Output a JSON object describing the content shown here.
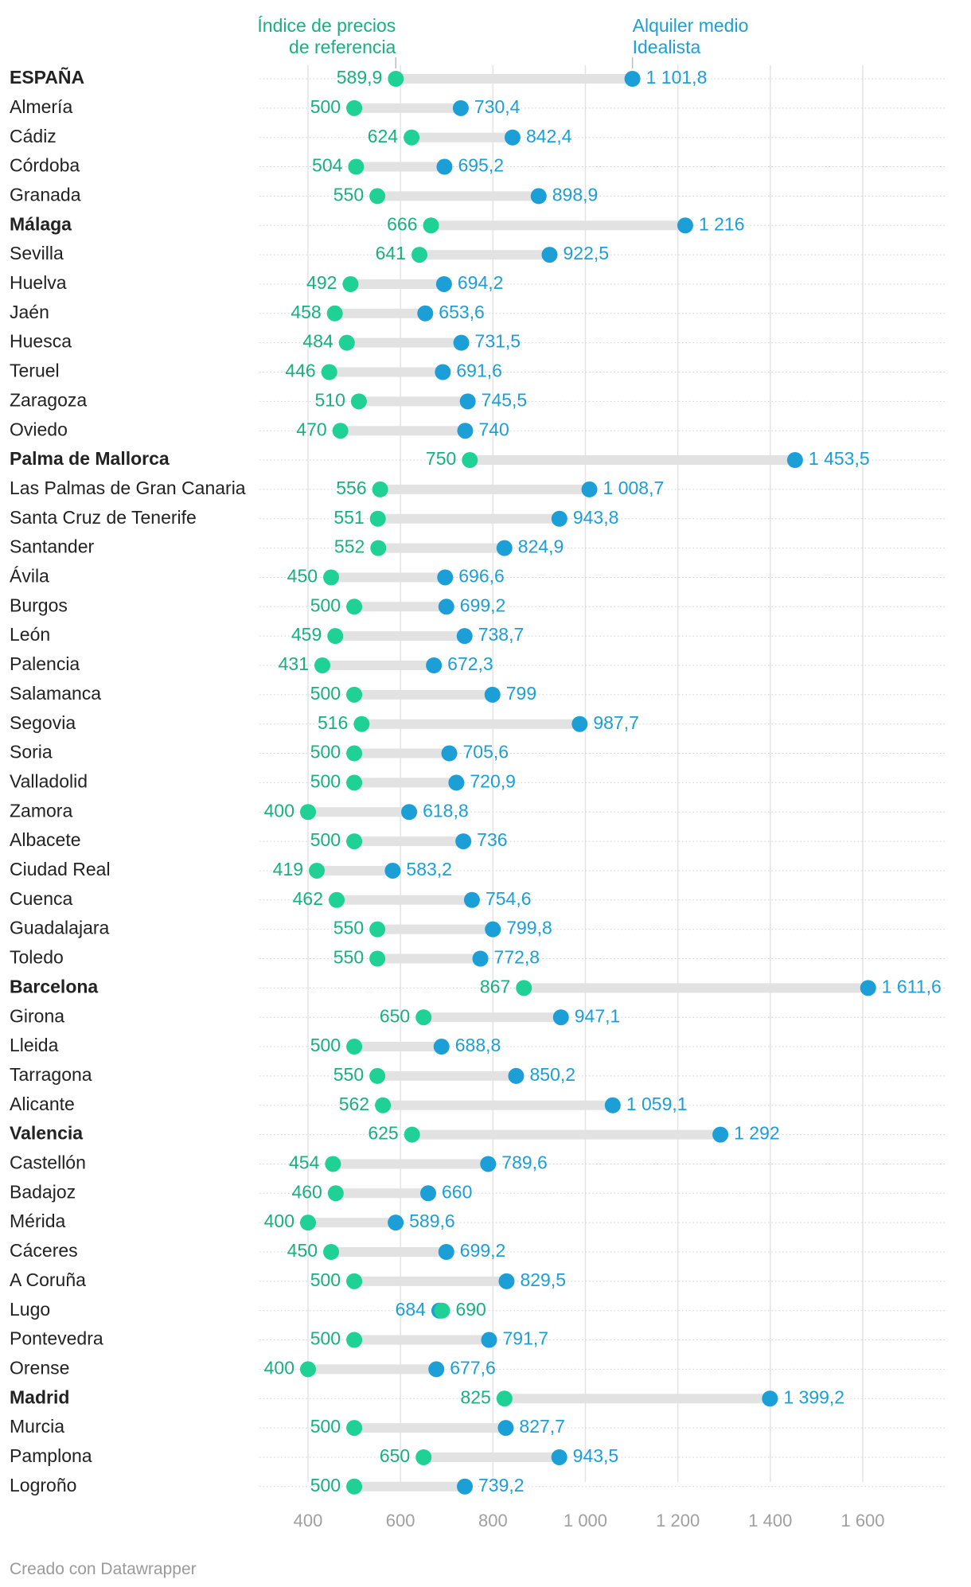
{
  "chart_data": {
    "type": "dot-range",
    "title": "",
    "xlabel": "",
    "ylabel": "",
    "xlim": [
      340,
      1700
    ],
    "xticks": [
      400,
      600,
      800,
      1000,
      1200,
      1400,
      1600
    ],
    "xtick_labels": [
      "400",
      "600",
      "800",
      "1 000",
      "1 200",
      "1 400",
      "1 600"
    ],
    "series": [
      {
        "name": "Índice de precios de referencia",
        "label_lines": [
          "Índice de precios",
          "de referencia"
        ],
        "color": "#1fd195",
        "text_color": "#17b07e"
      },
      {
        "name": "Alquiler medio Idealista",
        "label_lines": [
          "Alquiler medio",
          "Idealista"
        ],
        "color": "#1b9fd6",
        "text_color": "#1b9fd6"
      }
    ],
    "rows": [
      {
        "label": "ESPAÑA",
        "bold": true,
        "ref": 589.9,
        "ref_label": "589,9",
        "idealista": 1101.8,
        "idealista_label": "1 101,8"
      },
      {
        "label": "Almería",
        "bold": false,
        "ref": 500,
        "ref_label": "500",
        "idealista": 730.4,
        "idealista_label": "730,4"
      },
      {
        "label": "Cádiz",
        "bold": false,
        "ref": 624,
        "ref_label": "624",
        "idealista": 842.4,
        "idealista_label": "842,4"
      },
      {
        "label": "Córdoba",
        "bold": false,
        "ref": 504,
        "ref_label": "504",
        "idealista": 695.2,
        "idealista_label": "695,2"
      },
      {
        "label": "Granada",
        "bold": false,
        "ref": 550,
        "ref_label": "550",
        "idealista": 898.9,
        "idealista_label": "898,9"
      },
      {
        "label": "Málaga",
        "bold": true,
        "ref": 666,
        "ref_label": "666",
        "idealista": 1216,
        "idealista_label": "1 216"
      },
      {
        "label": "Sevilla",
        "bold": false,
        "ref": 641,
        "ref_label": "641",
        "idealista": 922.5,
        "idealista_label": "922,5"
      },
      {
        "label": "Huelva",
        "bold": false,
        "ref": 492,
        "ref_label": "492",
        "idealista": 694.2,
        "idealista_label": "694,2"
      },
      {
        "label": "Jaén",
        "bold": false,
        "ref": 458,
        "ref_label": "458",
        "idealista": 653.6,
        "idealista_label": "653,6"
      },
      {
        "label": "Huesca",
        "bold": false,
        "ref": 484,
        "ref_label": "484",
        "idealista": 731.5,
        "idealista_label": "731,5"
      },
      {
        "label": "Teruel",
        "bold": false,
        "ref": 446,
        "ref_label": "446",
        "idealista": 691.6,
        "idealista_label": "691,6"
      },
      {
        "label": "Zaragoza",
        "bold": false,
        "ref": 510,
        "ref_label": "510",
        "idealista": 745.5,
        "idealista_label": "745,5"
      },
      {
        "label": "Oviedo",
        "bold": false,
        "ref": 470,
        "ref_label": "470",
        "idealista": 740,
        "idealista_label": "740"
      },
      {
        "label": "Palma de Mallorca",
        "bold": true,
        "ref": 750,
        "ref_label": "750",
        "idealista": 1453.5,
        "idealista_label": "1 453,5"
      },
      {
        "label": "Las Palmas de Gran Canaria",
        "bold": false,
        "ref": 556,
        "ref_label": "556",
        "idealista": 1008.7,
        "idealista_label": "1 008,7"
      },
      {
        "label": "Santa Cruz de Tenerife",
        "bold": false,
        "ref": 551,
        "ref_label": "551",
        "idealista": 943.8,
        "idealista_label": "943,8"
      },
      {
        "label": "Santander",
        "bold": false,
        "ref": 552,
        "ref_label": "552",
        "idealista": 824.9,
        "idealista_label": "824,9"
      },
      {
        "label": "Ávila",
        "bold": false,
        "ref": 450,
        "ref_label": "450",
        "idealista": 696.6,
        "idealista_label": "696,6"
      },
      {
        "label": "Burgos",
        "bold": false,
        "ref": 500,
        "ref_label": "500",
        "idealista": 699.2,
        "idealista_label": "699,2"
      },
      {
        "label": "León",
        "bold": false,
        "ref": 459,
        "ref_label": "459",
        "idealista": 738.7,
        "idealista_label": "738,7"
      },
      {
        "label": "Palencia",
        "bold": false,
        "ref": 431,
        "ref_label": "431",
        "idealista": 672.3,
        "idealista_label": "672,3"
      },
      {
        "label": "Salamanca",
        "bold": false,
        "ref": 500,
        "ref_label": "500",
        "idealista": 799,
        "idealista_label": "799"
      },
      {
        "label": "Segovia",
        "bold": false,
        "ref": 516,
        "ref_label": "516",
        "idealista": 987.7,
        "idealista_label": "987,7"
      },
      {
        "label": "Soria",
        "bold": false,
        "ref": 500,
        "ref_label": "500",
        "idealista": 705.6,
        "idealista_label": "705,6"
      },
      {
        "label": "Valladolid",
        "bold": false,
        "ref": 500,
        "ref_label": "500",
        "idealista": 720.9,
        "idealista_label": "720,9"
      },
      {
        "label": "Zamora",
        "bold": false,
        "ref": 400,
        "ref_label": "400",
        "idealista": 618.8,
        "idealista_label": "618,8"
      },
      {
        "label": "Albacete",
        "bold": false,
        "ref": 500,
        "ref_label": "500",
        "idealista": 736,
        "idealista_label": "736"
      },
      {
        "label": "Ciudad Real",
        "bold": false,
        "ref": 419,
        "ref_label": "419",
        "idealista": 583.2,
        "idealista_label": "583,2"
      },
      {
        "label": "Cuenca",
        "bold": false,
        "ref": 462,
        "ref_label": "462",
        "idealista": 754.6,
        "idealista_label": "754,6"
      },
      {
        "label": "Guadalajara",
        "bold": false,
        "ref": 550,
        "ref_label": "550",
        "idealista": 799.8,
        "idealista_label": "799,8"
      },
      {
        "label": "Toledo",
        "bold": false,
        "ref": 550,
        "ref_label": "550",
        "idealista": 772.8,
        "idealista_label": "772,8"
      },
      {
        "label": "Barcelona",
        "bold": true,
        "ref": 867,
        "ref_label": "867",
        "idealista": 1611.6,
        "idealista_label": "1 611,6"
      },
      {
        "label": "Girona",
        "bold": false,
        "ref": 650,
        "ref_label": "650",
        "idealista": 947.1,
        "idealista_label": "947,1"
      },
      {
        "label": "Lleida",
        "bold": false,
        "ref": 500,
        "ref_label": "500",
        "idealista": 688.8,
        "idealista_label": "688,8"
      },
      {
        "label": "Tarragona",
        "bold": false,
        "ref": 550,
        "ref_label": "550",
        "idealista": 850.2,
        "idealista_label": "850,2"
      },
      {
        "label": "Alicante",
        "bold": false,
        "ref": 562,
        "ref_label": "562",
        "idealista": 1059.1,
        "idealista_label": "1 059,1"
      },
      {
        "label": "Valencia",
        "bold": true,
        "ref": 625,
        "ref_label": "625",
        "idealista": 1292,
        "idealista_label": "1 292"
      },
      {
        "label": "Castellón",
        "bold": false,
        "ref": 454,
        "ref_label": "454",
        "idealista": 789.6,
        "idealista_label": "789,6"
      },
      {
        "label": "Badajoz",
        "bold": false,
        "ref": 460,
        "ref_label": "460",
        "idealista": 660,
        "idealista_label": "660"
      },
      {
        "label": "Mérida",
        "bold": false,
        "ref": 400,
        "ref_label": "400",
        "idealista": 589.6,
        "idealista_label": "589,6"
      },
      {
        "label": "Cáceres",
        "bold": false,
        "ref": 450,
        "ref_label": "450",
        "idealista": 699.2,
        "idealista_label": "699,2"
      },
      {
        "label": "A Coruña",
        "bold": false,
        "ref": 500,
        "ref_label": "500",
        "idealista": 829.5,
        "idealista_label": "829,5"
      },
      {
        "label": "Lugo",
        "bold": false,
        "ref": 690,
        "ref_label": "690",
        "idealista": 684,
        "idealista_label": "684"
      },
      {
        "label": "Pontevedra",
        "bold": false,
        "ref": 500,
        "ref_label": "500",
        "idealista": 791.7,
        "idealista_label": "791,7"
      },
      {
        "label": "Orense",
        "bold": false,
        "ref": 400,
        "ref_label": "400",
        "idealista": 677.6,
        "idealista_label": "677,6"
      },
      {
        "label": "Madrid",
        "bold": true,
        "ref": 825,
        "ref_label": "825",
        "idealista": 1399.2,
        "idealista_label": "1 399,2"
      },
      {
        "label": "Murcia",
        "bold": false,
        "ref": 500,
        "ref_label": "500",
        "idealista": 827.7,
        "idealista_label": "827,7"
      },
      {
        "label": "Pamplona",
        "bold": false,
        "ref": 650,
        "ref_label": "650",
        "idealista": 943.5,
        "idealista_label": "943,5"
      },
      {
        "label": "Logroño",
        "bold": false,
        "ref": 500,
        "ref_label": "500",
        "idealista": 739.2,
        "idealista_label": "739,2"
      }
    ]
  },
  "footer": {
    "credit": "Creado con Datawrapper"
  }
}
